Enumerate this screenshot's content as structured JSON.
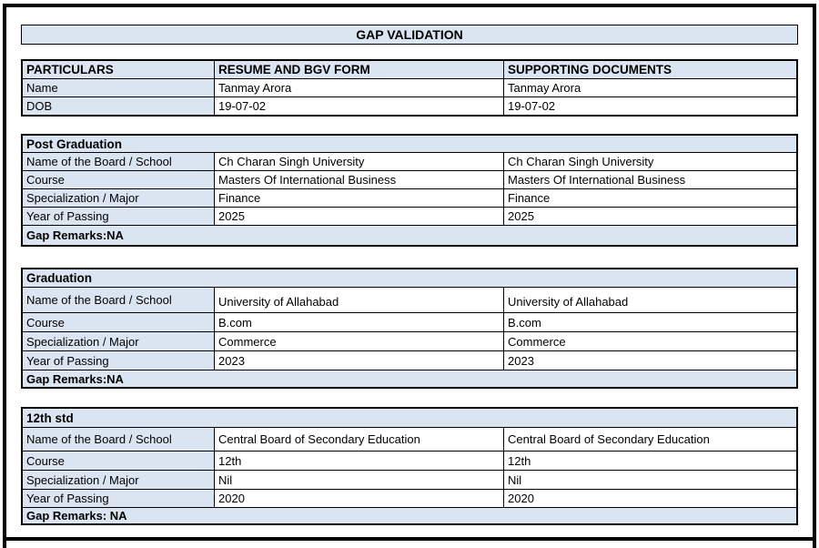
{
  "page": {
    "title": "GAP VALIDATION"
  },
  "colors": {
    "section_header_bg": "#dbe5f1",
    "border": "#000000",
    "page_bg": "#ffffff"
  },
  "main_table": {
    "headers": [
      "PARTICULARS",
      "RESUME AND BGV FORM",
      "SUPPORTING DOCUMENTS"
    ],
    "rows": [
      {
        "label": "Name",
        "resume": "Tanmay Arora",
        "supporting": "Tanmay Arora"
      },
      {
        "label": "DOB",
        "resume": "19-07-02",
        "supporting": "19-07-02"
      }
    ]
  },
  "sections": [
    {
      "title": "Post Graduation",
      "rows": [
        {
          "label": "Name of the Board / School",
          "resume": "Ch Charan Singh University",
          "supporting": "Ch Charan Singh University"
        },
        {
          "label": "Course",
          "resume": "Masters Of International Business",
          "supporting": "Masters Of International Business"
        },
        {
          "label": "Specialization / Major",
          "resume": "Finance",
          "supporting": "Finance"
        },
        {
          "label": "Year of Passing",
          "resume": "2025",
          "supporting": "2025"
        }
      ],
      "gap_remarks": "Gap Remarks:NA"
    },
    {
      "title": "Graduation",
      "rows": [
        {
          "label": "Name of the Board / School",
          "resume": "University of Allahabad",
          "supporting": "University of Allahabad"
        },
        {
          "label": "Course",
          "resume": "B.com",
          "supporting": "B.com"
        },
        {
          "label": "Specialization / Major",
          "resume": "Commerce",
          "supporting": "Commerce"
        },
        {
          "label": "Year of Passing",
          "resume": "2023",
          "supporting": "2023"
        }
      ],
      "gap_remarks": "Gap Remarks:NA"
    },
    {
      "title": "12th std",
      "rows": [
        {
          "label": "Name of the Board / School",
          "resume": "Central Board of Secondary Education",
          "supporting": "Central Board of Secondary Education"
        },
        {
          "label": "Course",
          "resume": "12th",
          "supporting": "12th"
        },
        {
          "label": "Specialization / Major",
          "resume": "Nil",
          "supporting": "Nil"
        },
        {
          "label": "Year of Passing",
          "resume": "2020",
          "supporting": "2020"
        }
      ],
      "gap_remarks": "Gap Remarks: NA"
    }
  ]
}
